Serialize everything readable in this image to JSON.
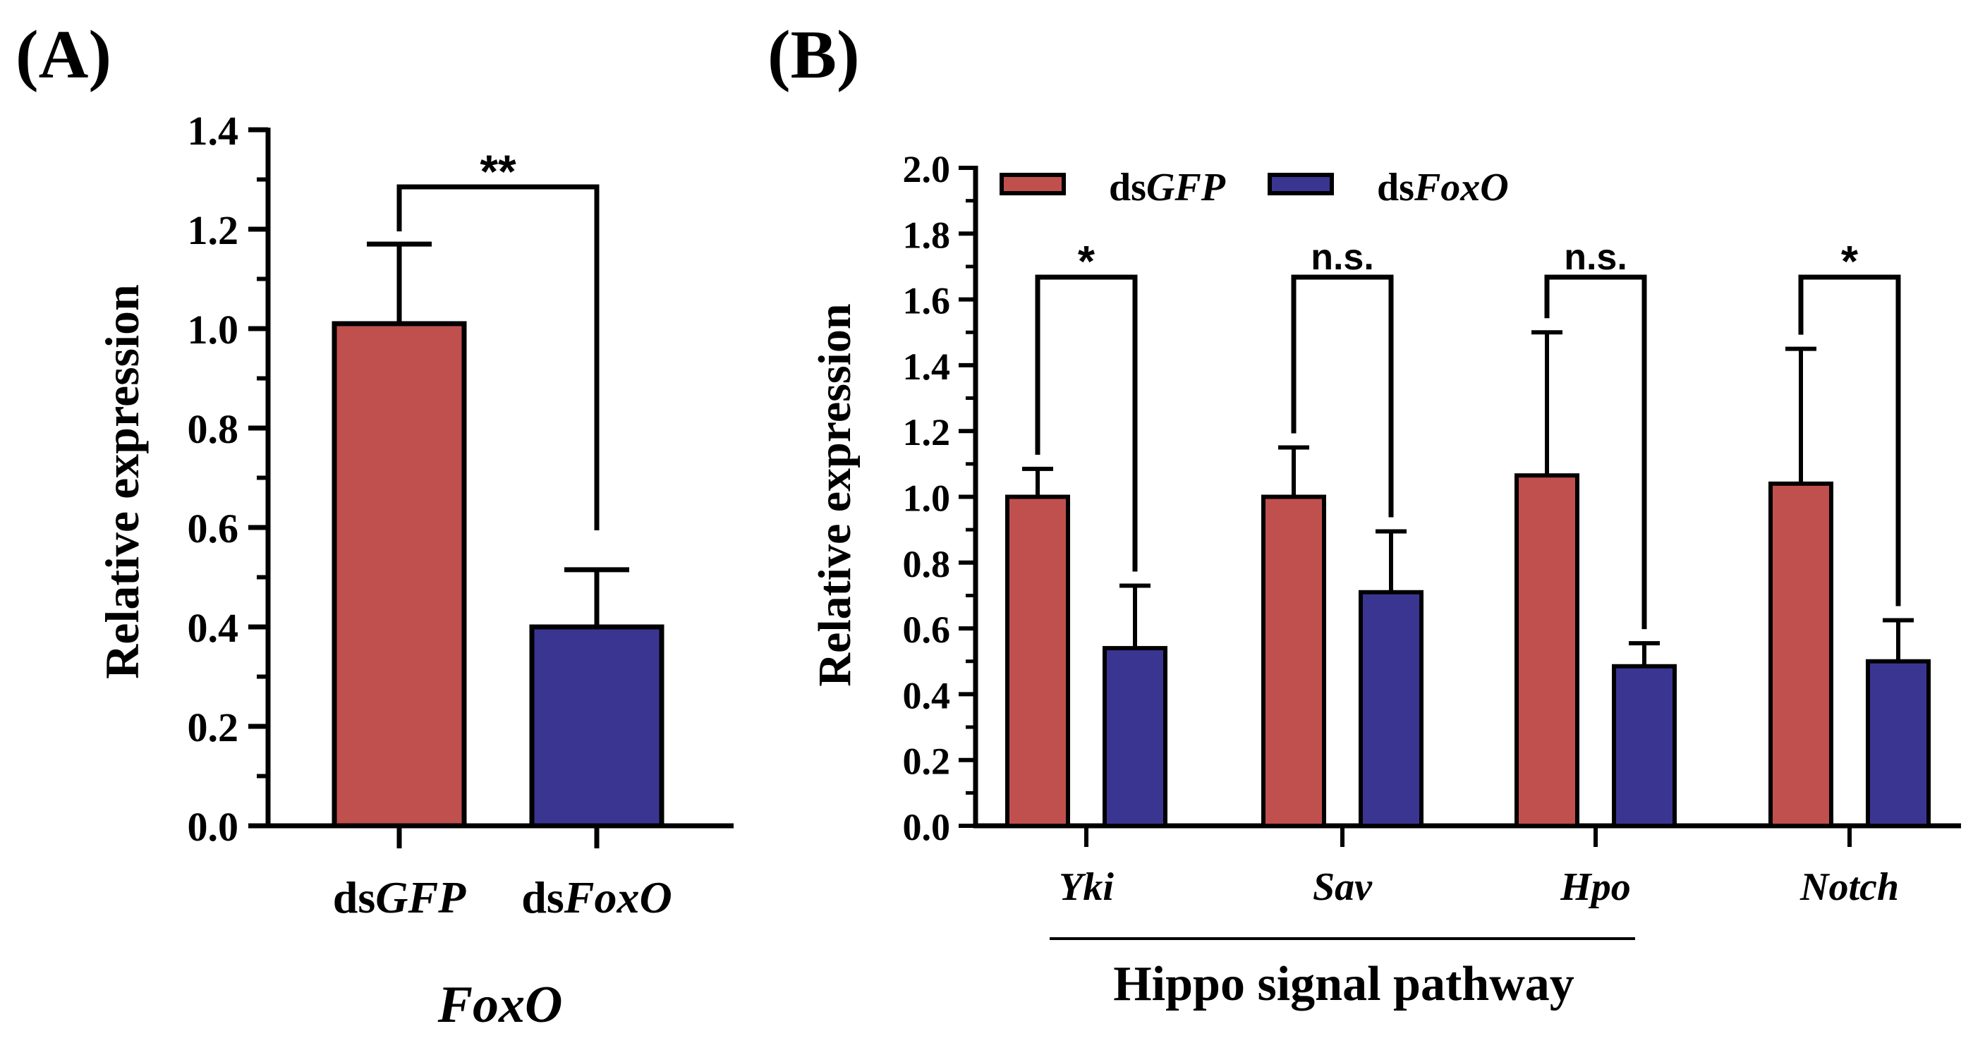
{
  "colors": {
    "dsGFP": "#c0504d",
    "dsFoxO": "#3b3592",
    "axis": "#000000"
  },
  "chart_data": [
    {
      "panel_label": "(A)",
      "type": "bar",
      "ylabel": "Relative expression",
      "ylim": [
        0,
        1.4
      ],
      "yticks": [
        "0.0",
        "0.2",
        "0.4",
        "0.6",
        "0.8",
        "1.0",
        "1.2",
        "1.4"
      ],
      "categories": [
        {
          "prefix": "ds",
          "italic": "GFP"
        },
        {
          "prefix": "ds",
          "italic": "FoxO"
        }
      ],
      "values": [
        1.01,
        0.4
      ],
      "errors": [
        0.16,
        0.115
      ],
      "xlabel": "FoxO",
      "significance": [
        {
          "between": [
            0,
            1
          ],
          "label": "**"
        }
      ]
    },
    {
      "panel_label": "(B)",
      "type": "bar",
      "ylabel": "Relative expression",
      "ylim": [
        0,
        2.0
      ],
      "yticks": [
        "0.0",
        "0.2",
        "0.4",
        "0.6",
        "0.8",
        "1.0",
        "1.2",
        "1.4",
        "1.6",
        "1.8",
        "2.0"
      ],
      "categories": [
        "Yki",
        "Sav",
        "Hpo",
        "Notch"
      ],
      "series": [
        {
          "name": {
            "prefix": "ds",
            "italic": "GFP"
          },
          "values": [
            1.0,
            1.0,
            1.065,
            1.04
          ],
          "errors": [
            0.085,
            0.15,
            0.435,
            0.41
          ]
        },
        {
          "name": {
            "prefix": "ds",
            "italic": "FoxO"
          },
          "values": [
            0.54,
            0.71,
            0.485,
            0.5
          ],
          "errors": [
            0.19,
            0.185,
            0.07,
            0.125
          ]
        }
      ],
      "significance": [
        "*",
        "n.s.",
        "n.s.",
        "*"
      ],
      "group_label": "Hippo signal pathway",
      "group_span": [
        "Yki",
        "Hpo"
      ],
      "legend_position": "top-left"
    }
  ]
}
